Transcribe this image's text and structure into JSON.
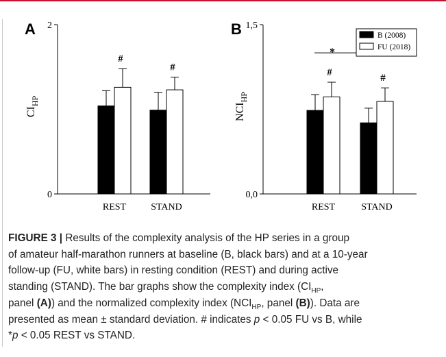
{
  "chart_data": [
    {
      "type": "bar",
      "panel": "A",
      "categories": [
        "REST",
        "STAND"
      ],
      "series": [
        {
          "name": "B (2008)",
          "values": [
            1.04,
            0.99
          ],
          "errors": [
            0.18,
            0.21
          ],
          "color": "#000000"
        },
        {
          "name": "FU (2018)",
          "values": [
            1.26,
            1.23
          ],
          "errors": [
            0.22,
            0.15
          ],
          "color": "#ffffff"
        }
      ],
      "ylabel_main": "CI",
      "ylabel_sub": "HP",
      "ylim": [
        0,
        2
      ],
      "y_ticks": [
        {
          "value": 0,
          "label": "0"
        },
        {
          "value": 2,
          "label": "2"
        }
      ],
      "annotations": [
        {
          "text": "#",
          "category": 0,
          "series": 1
        },
        {
          "text": "#",
          "category": 1,
          "series": 1
        }
      ],
      "legend": null
    },
    {
      "type": "bar",
      "panel": "B",
      "categories": [
        "REST",
        "STAND"
      ],
      "series": [
        {
          "name": "B (2008)",
          "values": [
            0.74,
            0.63
          ],
          "errors": [
            0.14,
            0.13
          ],
          "color": "#000000"
        },
        {
          "name": "FU (2018)",
          "values": [
            0.86,
            0.82
          ],
          "errors": [
            0.13,
            0.12
          ],
          "color": "#ffffff"
        }
      ],
      "ylabel_main": "NCI",
      "ylabel_sub": "HP",
      "ylim": [
        0,
        1.5
      ],
      "y_ticks": [
        {
          "value": 0,
          "label": "0,0"
        },
        {
          "value": 1.5,
          "label": "1,5"
        }
      ],
      "annotations": [
        {
          "text": "#",
          "category": 0,
          "series": 1
        },
        {
          "text": "#",
          "category": 1,
          "series": 1
        }
      ],
      "significance": {
        "text": "*",
        "value": 1.25
      },
      "legend": {
        "entries": [
          "B (2008)",
          "FU (2018)"
        ],
        "position": "top-right"
      }
    }
  ],
  "caption": {
    "label": "FIGURE 3 |",
    "lines": [
      "Results of the complexity analysis of the HP series in a group",
      "of amateur half-marathon runners at baseline (B, black bars) and at a 10-year",
      "follow-up (FU, white bars) in resting condition (REST) and during active"
    ],
    "line4_a": "standing (STAND). The bar graphs show the complexity index (CI",
    "line4_sub": "HP",
    "line4_b": ",",
    "line5_a": "panel ",
    "line5_panel_a": "(A)",
    "line5_b": ") and the normalized complexity index (NCI",
    "line5_sub": "HP",
    "line5_c": ", panel ",
    "line5_panel_b": "(B)",
    "line5_d": "). Data are",
    "line6_a": "presented as mean ± standard deviation. # indicates ",
    "line6_p": "p",
    "line6_b": " < 0.05 FU vs B, while",
    "line7_a": "*",
    "line7_p": "p",
    "line7_b": " < 0.05 REST vs STAND."
  }
}
